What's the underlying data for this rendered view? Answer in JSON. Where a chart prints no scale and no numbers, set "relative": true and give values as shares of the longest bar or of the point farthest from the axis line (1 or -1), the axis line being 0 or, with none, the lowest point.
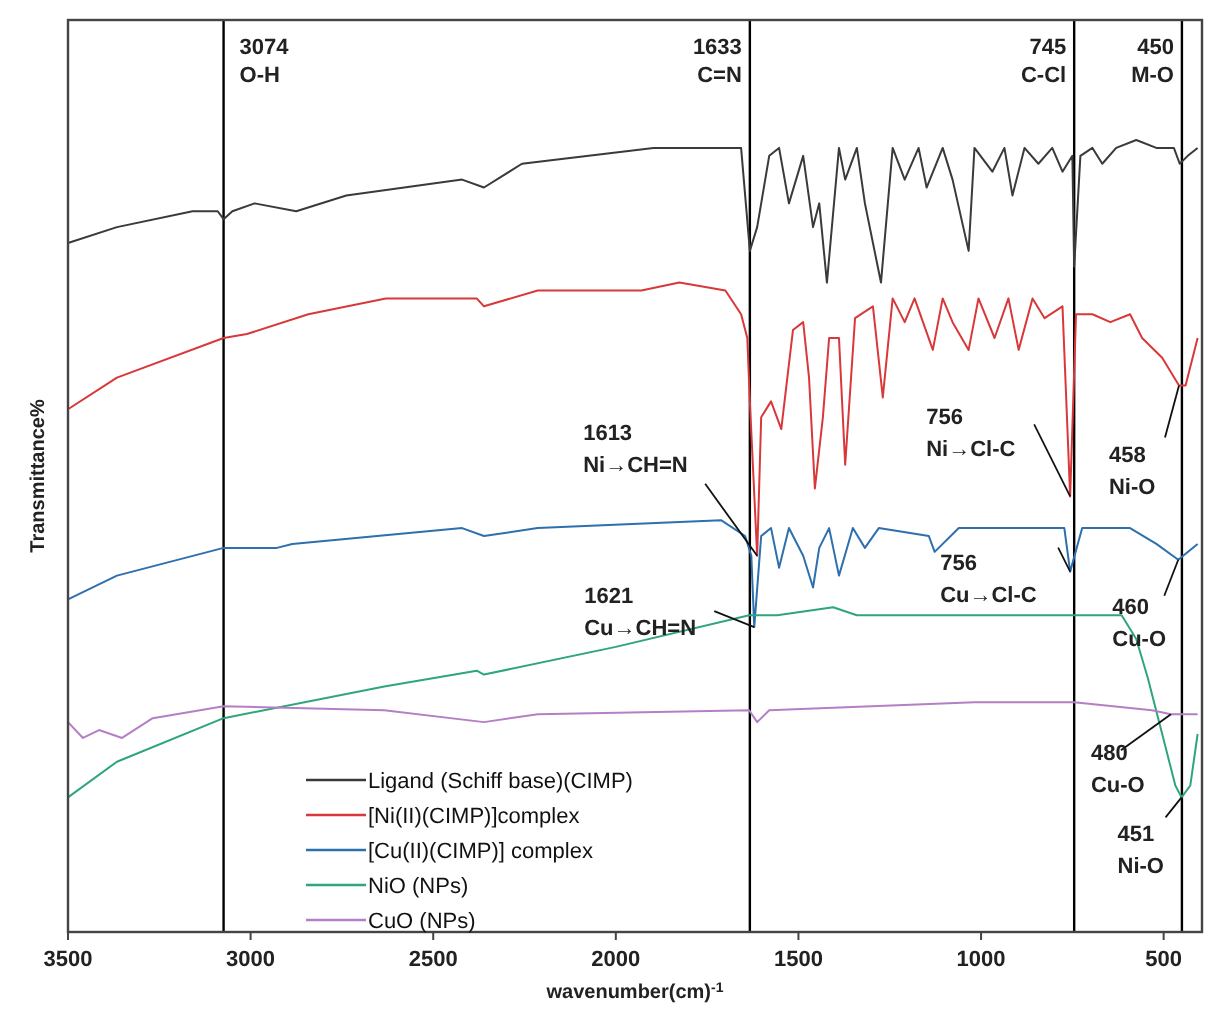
{
  "chart_data": {
    "type": "line",
    "relative": true,
    "xlabel": "wavenumber(cm)$^{-1}$",
    "ylabel": "Transmittance%",
    "xlim": [
      3500,
      395
    ],
    "xticks": [
      3500,
      3000,
      2500,
      2000,
      1500,
      1000,
      500
    ],
    "grid": false,
    "legend": "bottom left",
    "line_style": "solid",
    "series": [
      {
        "name": "Ligand (Schiff base)(CIMP)",
        "color": "#3a3a3a",
        "x": [
          3500,
          3366,
          3159,
          3090,
          3074,
          3050,
          2989,
          2875,
          2738,
          2421,
          2361,
          2257,
          1897,
          1690,
          1657,
          1633,
          1613,
          1580,
          1553,
          1526,
          1487,
          1460,
          1443,
          1422,
          1389,
          1372,
          1340,
          1318,
          1274,
          1242,
          1209,
          1171,
          1149,
          1105,
          1078,
          1034,
          1018,
          969,
          936,
          914,
          881,
          843,
          805,
          777,
          750,
          745,
          728,
          695,
          668,
          630,
          575,
          520,
          472,
          456,
          434,
          407
        ],
        "values": [
          0.87,
          0.89,
          0.91,
          0.91,
          0.9,
          0.91,
          0.92,
          0.91,
          0.93,
          0.95,
          0.94,
          0.97,
          0.99,
          0.99,
          0.99,
          0.86,
          0.89,
          0.98,
          0.99,
          0.92,
          0.98,
          0.89,
          0.92,
          0.82,
          0.99,
          0.95,
          0.99,
          0.92,
          0.82,
          0.99,
          0.95,
          0.99,
          0.94,
          0.99,
          0.95,
          0.86,
          0.99,
          0.96,
          0.99,
          0.93,
          0.99,
          0.97,
          0.99,
          0.96,
          0.98,
          0.84,
          0.98,
          0.99,
          0.97,
          0.99,
          1.0,
          0.99,
          0.99,
          0.97,
          0.98,
          0.99
        ]
      },
      {
        "name": "[Ni(II)(CIMP)]complex",
        "color": "#d9383a",
        "x": [
          3500,
          3366,
          3074,
          3010,
          2842,
          2630,
          2381,
          2361,
          2214,
          1930,
          1826,
          1700,
          1657,
          1640,
          1633,
          1613,
          1602,
          1575,
          1547,
          1515,
          1487,
          1471,
          1455,
          1433,
          1416,
          1389,
          1372,
          1345,
          1296,
          1269,
          1242,
          1209,
          1182,
          1132,
          1105,
          1078,
          1034,
          1007,
          963,
          925,
          897,
          859,
          826,
          777,
          756,
          740,
          695,
          646,
          592,
          559,
          504,
          458,
          440,
          407
        ],
        "values": [
          0.66,
          0.7,
          0.75,
          0.755,
          0.78,
          0.8,
          0.8,
          0.79,
          0.81,
          0.81,
          0.82,
          0.81,
          0.78,
          0.75,
          0.67,
          0.475,
          0.65,
          0.67,
          0.635,
          0.76,
          0.77,
          0.7,
          0.56,
          0.65,
          0.75,
          0.75,
          0.59,
          0.775,
          0.79,
          0.675,
          0.8,
          0.77,
          0.8,
          0.735,
          0.8,
          0.77,
          0.735,
          0.8,
          0.75,
          0.8,
          0.735,
          0.8,
          0.775,
          0.79,
          0.55,
          0.78,
          0.78,
          0.77,
          0.78,
          0.75,
          0.725,
          0.69,
          0.69,
          0.75
        ]
      },
      {
        "name": "[Cu(II)(CIMP)] complex",
        "color": "#2e6fad",
        "x": [
          3500,
          3366,
          3074,
          2928,
          2886,
          2421,
          2361,
          2214,
          1712,
          1646,
          1629,
          1621,
          1602,
          1575,
          1553,
          1526,
          1487,
          1460,
          1443,
          1416,
          1389,
          1351,
          1318,
          1280,
          1143,
          1127,
          1061,
          914,
          772,
          756,
          723,
          592,
          520,
          460,
          407
        ],
        "values": [
          0.42,
          0.45,
          0.485,
          0.485,
          0.49,
          0.51,
          0.5,
          0.51,
          0.52,
          0.5,
          0.475,
          0.385,
          0.5,
          0.51,
          0.46,
          0.51,
          0.475,
          0.435,
          0.485,
          0.51,
          0.45,
          0.51,
          0.485,
          0.51,
          0.5,
          0.48,
          0.51,
          0.51,
          0.51,
          0.455,
          0.51,
          0.51,
          0.49,
          0.47,
          0.49
        ]
      },
      {
        "name": "NiO (NPs)",
        "color": "#2ea57a",
        "x": [
          3500,
          3366,
          3074,
          2634,
          2381,
          2361,
          2000,
          1635,
          1607,
          1558,
          1405,
          1340,
          1160,
          980,
          686,
          615,
          575,
          543,
          504,
          468,
          451,
          427,
          407
        ],
        "values": [
          0.17,
          0.215,
          0.27,
          0.31,
          0.33,
          0.325,
          0.36,
          0.4,
          0.4,
          0.4,
          0.41,
          0.4,
          0.4,
          0.4,
          0.4,
          0.4,
          0.37,
          0.32,
          0.25,
          0.185,
          0.17,
          0.185,
          0.25
        ]
      },
      {
        "name": "CuO (NPs)",
        "color": "#b57fc6",
        "x": [
          3500,
          3459,
          3415,
          3352,
          3268,
          3074,
          2634,
          2361,
          2214,
          1635,
          1613,
          1580,
          1018,
          745,
          532,
          480,
          440,
          407
        ],
        "values": [
          0.265,
          0.245,
          0.255,
          0.245,
          0.27,
          0.285,
          0.28,
          0.265,
          0.275,
          0.28,
          0.265,
          0.28,
          0.29,
          0.29,
          0.28,
          0.275,
          0.275,
          0.275
        ]
      }
    ],
    "ref_lines": [
      {
        "axis": "x",
        "value": 3074,
        "label": "3074\nO-H",
        "color": "#000000"
      },
      {
        "axis": "x",
        "value": 1633,
        "label": "1633\nC=N",
        "color": "#000000"
      },
      {
        "axis": "x",
        "value": 745,
        "label": "745\nC-Cl",
        "color": "#000000"
      },
      {
        "axis": "x",
        "value": 450,
        "label": "450\nM-O",
        "color": "#000000"
      }
    ],
    "annotations": [
      {
        "text": "1613\nNi→CH=N",
        "x": 1613,
        "y": 0.475
      },
      {
        "text": "756\nNi→Cl-C",
        "x": 756,
        "y": 0.55
      },
      {
        "text": "458\nNi-O",
        "x": 458,
        "y": 0.69
      },
      {
        "text": "1621\nCu→CH=N",
        "x": 1621,
        "y": 0.385
      },
      {
        "text": "756\nCu→Cl-C",
        "x": 756,
        "y": 0.455
      },
      {
        "text": "460\nCu-O",
        "x": 460,
        "y": 0.47
      },
      {
        "text": "480\nCu-O",
        "x": 480,
        "y": 0.275
      },
      {
        "text": "451\nNi-O",
        "x": 451,
        "y": 0.17
      }
    ]
  }
}
